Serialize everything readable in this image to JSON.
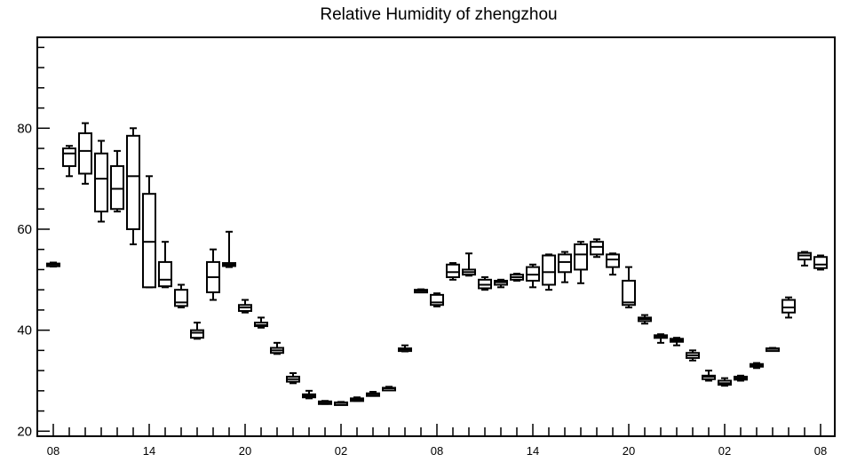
{
  "chart_data": {
    "type": "box",
    "title": "Relative Humidity of zhengzhou",
    "xlabel": "",
    "ylabel": "",
    "ylim": [
      19,
      98
    ],
    "yticks": [
      20,
      40,
      60,
      80
    ],
    "xlim": [
      0,
      48
    ],
    "xticks": [
      {
        "x": 0,
        "label": "08"
      },
      {
        "x": 6,
        "label": "14"
      },
      {
        "x": 12,
        "label": "20"
      },
      {
        "x": 18,
        "label": "02"
      },
      {
        "x": 24,
        "label": "08"
      },
      {
        "x": 30,
        "label": "14"
      },
      {
        "x": 36,
        "label": "20"
      },
      {
        "x": 42,
        "label": "02"
      },
      {
        "x": 48,
        "label": "08"
      }
    ],
    "boxes": [
      {
        "x": 0,
        "min": 52.6,
        "q1": 52.8,
        "median": 53.0,
        "q3": 53.2,
        "max": 53.4
      },
      {
        "x": 1,
        "min": 70.5,
        "q1": 72.5,
        "median": 75.0,
        "q3": 76.0,
        "max": 76.5
      },
      {
        "x": 2,
        "min": 69.0,
        "q1": 71.0,
        "median": 75.5,
        "q3": 79.0,
        "max": 81.0
      },
      {
        "x": 3,
        "min": 61.5,
        "q1": 63.5,
        "median": 70.0,
        "q3": 75.0,
        "max": 77.5
      },
      {
        "x": 4,
        "min": 63.5,
        "q1": 64.0,
        "median": 68.0,
        "q3": 72.5,
        "max": 75.5
      },
      {
        "x": 5,
        "min": 57.0,
        "q1": 60.0,
        "median": 70.5,
        "q3": 78.5,
        "max": 80.0
      },
      {
        "x": 6,
        "min": 48.5,
        "q1": 48.5,
        "median": 57.5,
        "q3": 67.0,
        "max": 70.5
      },
      {
        "x": 7,
        "min": 48.5,
        "q1": 48.7,
        "median": 50.0,
        "q3": 53.5,
        "max": 57.5
      },
      {
        "x": 8,
        "min": 44.5,
        "q1": 44.8,
        "median": 45.5,
        "q3": 48.0,
        "max": 49.0
      },
      {
        "x": 9,
        "min": 38.3,
        "q1": 38.5,
        "median": 39.5,
        "q3": 40.0,
        "max": 41.5
      },
      {
        "x": 10,
        "min": 46.0,
        "q1": 47.5,
        "median": 50.5,
        "q3": 53.5,
        "max": 56.0
      },
      {
        "x": 11,
        "min": 52.5,
        "q1": 52.7,
        "median": 53.0,
        "q3": 53.3,
        "max": 59.5
      },
      {
        "x": 12,
        "min": 43.5,
        "q1": 43.8,
        "median": 44.5,
        "q3": 45.0,
        "max": 46.0
      },
      {
        "x": 13,
        "min": 40.5,
        "q1": 40.8,
        "median": 41.0,
        "q3": 41.5,
        "max": 42.5
      },
      {
        "x": 14,
        "min": 35.3,
        "q1": 35.5,
        "median": 36.0,
        "q3": 36.5,
        "max": 37.5
      },
      {
        "x": 15,
        "min": 29.5,
        "q1": 29.8,
        "median": 30.3,
        "q3": 30.8,
        "max": 31.5
      },
      {
        "x": 16,
        "min": 26.5,
        "q1": 26.7,
        "median": 27.0,
        "q3": 27.3,
        "max": 28.0
      },
      {
        "x": 17,
        "min": 25.4,
        "q1": 25.5,
        "median": 25.7,
        "q3": 25.9,
        "max": 26.0
      },
      {
        "x": 18,
        "min": 25.4,
        "q1": 25.5,
        "median": 25.6,
        "q3": 25.7,
        "max": 25.8
      },
      {
        "x": 19,
        "min": 26.0,
        "q1": 26.1,
        "median": 26.3,
        "q3": 26.5,
        "max": 26.7
      },
      {
        "x": 20,
        "min": 27.0,
        "q1": 27.1,
        "median": 27.3,
        "q3": 27.5,
        "max": 27.8
      },
      {
        "x": 21,
        "min": 28.3,
        "q1": 28.4,
        "median": 28.5,
        "q3": 28.6,
        "max": 28.8
      },
      {
        "x": 22,
        "min": 35.8,
        "q1": 36.0,
        "median": 36.2,
        "q3": 36.4,
        "max": 37.0
      },
      {
        "x": 23,
        "min": 47.5,
        "q1": 47.6,
        "median": 47.8,
        "q3": 48.0,
        "max": 48.1
      },
      {
        "x": 24,
        "min": 44.7,
        "q1": 45.0,
        "median": 45.5,
        "q3": 47.0,
        "max": 47.3
      },
      {
        "x": 25,
        "min": 50.0,
        "q1": 50.5,
        "median": 51.5,
        "q3": 53.0,
        "max": 53.3
      },
      {
        "x": 26,
        "min": 50.8,
        "q1": 51.0,
        "median": 51.5,
        "q3": 52.0,
        "max": 55.2
      },
      {
        "x": 27,
        "min": 48.0,
        "q1": 48.3,
        "median": 49.0,
        "q3": 50.0,
        "max": 50.5
      },
      {
        "x": 28,
        "min": 48.5,
        "q1": 49.0,
        "median": 49.5,
        "q3": 49.8,
        "max": 50.0
      },
      {
        "x": 29,
        "min": 49.8,
        "q1": 50.0,
        "median": 50.5,
        "q3": 51.0,
        "max": 51.2
      },
      {
        "x": 30,
        "min": 48.5,
        "q1": 49.8,
        "median": 51.0,
        "q3": 52.5,
        "max": 53.0
      },
      {
        "x": 31,
        "min": 48.0,
        "q1": 49.0,
        "median": 51.5,
        "q3": 54.8,
        "max": 55.0
      },
      {
        "x": 32,
        "min": 49.5,
        "q1": 51.5,
        "median": 53.5,
        "q3": 55.0,
        "max": 55.5
      },
      {
        "x": 33,
        "min": 49.3,
        "q1": 52.0,
        "median": 55.0,
        "q3": 57.0,
        "max": 57.5
      },
      {
        "x": 34,
        "min": 54.5,
        "q1": 55.0,
        "median": 56.5,
        "q3": 57.5,
        "max": 58.0
      },
      {
        "x": 35,
        "min": 51.0,
        "q1": 52.5,
        "median": 54.0,
        "q3": 55.0,
        "max": 55.2
      },
      {
        "x": 36,
        "min": 44.5,
        "q1": 45.0,
        "median": 45.5,
        "q3": 49.8,
        "max": 52.5
      },
      {
        "x": 37,
        "min": 41.3,
        "q1": 41.8,
        "median": 42.2,
        "q3": 42.5,
        "max": 43.0
      },
      {
        "x": 38,
        "min": 37.5,
        "q1": 38.5,
        "median": 38.8,
        "q3": 39.0,
        "max": 39.2
      },
      {
        "x": 39,
        "min": 37.0,
        "q1": 37.7,
        "median": 38.0,
        "q3": 38.3,
        "max": 38.5
      },
      {
        "x": 40,
        "min": 34.0,
        "q1": 34.5,
        "median": 35.0,
        "q3": 35.5,
        "max": 36.0
      },
      {
        "x": 41,
        "min": 30.0,
        "q1": 30.3,
        "median": 30.8,
        "q3": 31.0,
        "max": 32.0
      },
      {
        "x": 42,
        "min": 29.0,
        "q1": 29.2,
        "median": 29.5,
        "q3": 30.0,
        "max": 30.5
      },
      {
        "x": 43,
        "min": 30.0,
        "q1": 30.2,
        "median": 30.5,
        "q3": 30.8,
        "max": 31.0
      },
      {
        "x": 44,
        "min": 32.5,
        "q1": 32.8,
        "median": 33.0,
        "q3": 33.3,
        "max": 33.5
      },
      {
        "x": 45,
        "min": 36.1,
        "q1": 36.2,
        "median": 36.3,
        "q3": 36.4,
        "max": 36.5
      },
      {
        "x": 46,
        "min": 42.5,
        "q1": 43.5,
        "median": 44.5,
        "q3": 46.0,
        "max": 46.5
      },
      {
        "x": 47,
        "min": 52.8,
        "q1": 54.0,
        "median": 54.8,
        "q3": 55.3,
        "max": 55.5
      },
      {
        "x": 48,
        "min": 52.0,
        "q1": 52.3,
        "median": 53.0,
        "q3": 54.5,
        "max": 54.8
      }
    ]
  }
}
